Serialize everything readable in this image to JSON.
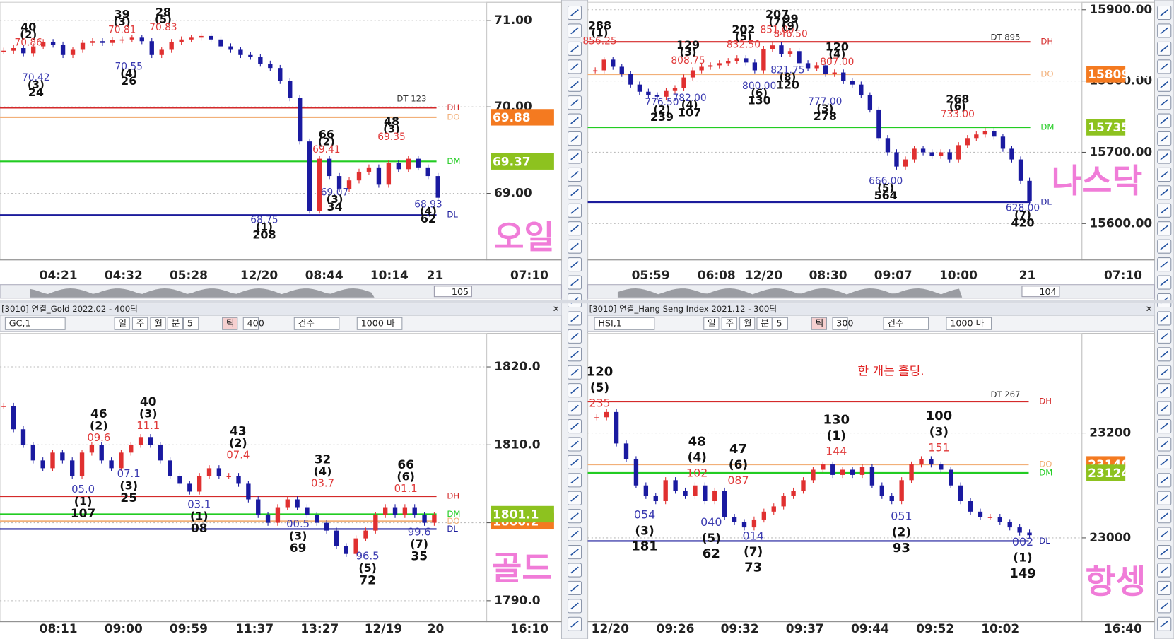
{
  "panels": [
    {
      "type": "candlestick",
      "big_label": "오일",
      "corner_label": "07:10",
      "scroll_value": 105,
      "dt_label": "DT 123",
      "ylim": [
        68.23,
        71.21
      ],
      "yticks": [
        {
          "value": 71,
          "label": "71.00"
        },
        {
          "value": 70,
          "label": "70.00"
        },
        {
          "value": 69,
          "label": "69.00"
        }
      ],
      "x_labels": [
        "04:21",
        "04:32",
        "05:28",
        "12/20",
        "08:44",
        "10:14",
        "21"
      ],
      "up_color": "#e03030",
      "down_color": "#1a1aa0",
      "levels": [
        {
          "name": "DH",
          "value": 69.99,
          "color": "#d42a2a"
        },
        {
          "name": "DO",
          "value": 69.88,
          "color": "#f2b079"
        },
        {
          "name": "DM",
          "value": 69.37,
          "color": "#22cc22"
        },
        {
          "name": "DL",
          "value": 68.75,
          "color": "#1c1c9c"
        }
      ],
      "price_tags": [
        {
          "value": 69.88,
          "color": "#f47a20"
        },
        {
          "value": 69.37,
          "color": "#8dc21f"
        }
      ],
      "highs": [
        {
          "count": "40",
          "wave": "(2)",
          "price": "70.86"
        },
        {
          "count": "39",
          "wave": "(3)",
          "price": "70.81"
        },
        {
          "count": "28",
          "wave": "(5)",
          "price": "70.83"
        },
        {
          "count": "66",
          "wave": "(2)",
          "price": "69.41"
        },
        {
          "count": "48",
          "wave": "(3)",
          "price": "69.35"
        }
      ],
      "lows": [
        {
          "price": "70.42",
          "wave": "(3)",
          "count": "24"
        },
        {
          "price": "70.55",
          "wave": "(4)",
          "count": "26"
        },
        {
          "price": "68.75",
          "wave": "(1)",
          "count": "208"
        },
        {
          "price": "69.07",
          "wave": "(3)",
          "count": "34"
        },
        {
          "price": "68.93",
          "wave": "(4)",
          "count": "62"
        }
      ],
      "closes": [
        70.65,
        70.68,
        70.62,
        70.7,
        70.75,
        70.72,
        70.6,
        70.66,
        70.74,
        70.76,
        70.74,
        70.77,
        70.78,
        70.8,
        70.76,
        70.6,
        70.66,
        70.75,
        70.78,
        70.8,
        70.82,
        70.78,
        70.7,
        70.66,
        70.6,
        70.58,
        70.5,
        70.45,
        70.3,
        70.1,
        69.6,
        68.8,
        69.4,
        69.2,
        69.05,
        69.15,
        69.25,
        69.3,
        69.1,
        69.35,
        69.28,
        69.4,
        69.3,
        69.2,
        68.95
      ]
    },
    {
      "type": "candlestick",
      "big_label": "나스닥",
      "corner_label": "07:10",
      "scroll_value": 104,
      "dt_label": "DT 895",
      "ylim": [
        15549,
        15910.5
      ],
      "yticks": [
        {
          "value": 15900,
          "label": "15900.00"
        },
        {
          "value": 15800,
          "label": "15800.00"
        },
        {
          "value": 15700,
          "label": "15700.00"
        },
        {
          "value": 15600,
          "label": "15600.00"
        }
      ],
      "x_labels": [
        "05:59",
        "06:08",
        "12/20",
        "08:30",
        "09:07",
        "10:00",
        "21"
      ],
      "up_color": "#e03030",
      "down_color": "#1a1aa0",
      "levels": [
        {
          "name": "DH",
          "value": 15855,
          "color": "#d42a2a"
        },
        {
          "name": "DO",
          "value": 15809.5,
          "color": "#f2b079"
        },
        {
          "name": "DM",
          "value": 15735.13,
          "color": "#22cc22"
        },
        {
          "name": "DL",
          "value": 15630,
          "color": "#1c1c9c"
        }
      ],
      "price_tags": [
        {
          "value": 15809.5,
          "label": "15809.50",
          "color": "#f47a20"
        },
        {
          "value": 15735.13,
          "color": "#8dc21f"
        }
      ],
      "highs": [
        {
          "count": "288",
          "wave": "(1)",
          "price": "856.25"
        },
        {
          "count": "129",
          "wave": "(3)",
          "price": "808.75"
        },
        {
          "count": "202",
          "wave": "(5)",
          "price": "832.50"
        },
        {
          "count": "207",
          "wave": "(7)",
          "price": "851.00"
        },
        {
          "count": "99",
          "wave": "(9)",
          "price": "846.50"
        },
        {
          "count": "120",
          "wave": "(4)",
          "price": "807.00"
        },
        {
          "count": "268",
          "wave": "(6)",
          "price": "733.00"
        }
      ],
      "lows": [
        {
          "price": "776.50",
          "wave": "(2)",
          "count": "239"
        },
        {
          "price": "782.00",
          "wave": "(4)",
          "count": "107"
        },
        {
          "price": "800.00",
          "wave": "(6)",
          "count": "130"
        },
        {
          "price": "821.75",
          "wave": "(8)",
          "count": "120"
        },
        {
          "price": "777.00",
          "wave": "(3)",
          "count": "278"
        },
        {
          "price": "666.00",
          "wave": "(5)",
          "count": "564"
        },
        {
          "price": "628.00",
          "wave": "(7)",
          "count": "420"
        }
      ],
      "closes": [
        15815,
        15830,
        15820,
        15810,
        15795,
        15785,
        15780,
        15778,
        15786,
        15790,
        15805,
        15815,
        15820,
        15822,
        15825,
        15828,
        15832,
        15826,
        15815,
        15845,
        15850,
        15838,
        15842,
        15825,
        15818,
        15822,
        15810,
        15812,
        15800,
        15795,
        15780,
        15760,
        15720,
        15700,
        15680,
        15690,
        15705,
        15700,
        15695,
        15700,
        15690,
        15710,
        15720,
        15725,
        15730,
        15722,
        15705,
        15690,
        15660,
        15632
      ]
    },
    {
      "type": "candlestick",
      "big_label": "골드",
      "corner_label": "16:10",
      "title": "[3010] 연결_Gold 2022.02 - 400틱",
      "toolbar": [
        "GC,1",
        "일",
        "주",
        "월",
        "분",
        "5",
        "틱",
        "400",
        "건수",
        "1000 바"
      ],
      "ylim": [
        1787.3,
        1824.3
      ],
      "yticks": [
        {
          "value": 1820,
          "label": "1820.0"
        },
        {
          "value": 1810,
          "label": "1810.0"
        },
        {
          "value": 1800,
          "label": "1800.0"
        },
        {
          "value": 1790,
          "label": "1790.0"
        }
      ],
      "x_labels": [
        "08:11",
        "09:00",
        "09:59",
        "11:37",
        "13:27",
        "12/19",
        "20"
      ],
      "up_color": "#e03030",
      "down_color": "#1a1aa0",
      "levels": [
        {
          "name": "DH",
          "value": 1803.4,
          "color": "#d42a2a"
        },
        {
          "name": "DM",
          "value": 1801.1,
          "color": "#22cc22"
        },
        {
          "name": "DO",
          "value": 1800.2,
          "color": "#f2b079"
        },
        {
          "name": "DL",
          "value": 1799.2,
          "color": "#1c1c9c"
        }
      ],
      "price_tags": [
        {
          "value": 1800.2,
          "color": "#f47a20"
        },
        {
          "value": 1801.1,
          "color": "#8dc21f"
        }
      ],
      "highs": [
        {
          "count": "46",
          "wave": "(2)",
          "price": "09.6"
        },
        {
          "count": "40",
          "wave": "(3)",
          "price": "11.1"
        },
        {
          "count": "43",
          "wave": "(2)",
          "price": "07.4"
        },
        {
          "count": "32",
          "wave": "(4)",
          "price": "03.7"
        },
        {
          "count": "66",
          "wave": "(6)",
          "price": "01.1"
        }
      ],
      "lows": [
        {
          "price": "05.0",
          "wave": "(1)",
          "count": "107"
        },
        {
          "price": "07.1",
          "wave": "(3)",
          "count": "25"
        },
        {
          "price": "03.1",
          "wave": "(1)",
          "count": "08"
        },
        {
          "price": "00.5",
          "wave": "(3)",
          "count": "69"
        },
        {
          "price": "96.5",
          "wave": "(5)",
          "count": "72"
        },
        {
          "price": "99.6",
          "wave": "(7)",
          "count": "35"
        }
      ],
      "closes": [
        1815,
        1812,
        1810,
        1808,
        1807,
        1809,
        1808,
        1806,
        1809,
        1810,
        1808,
        1807,
        1809,
        1810,
        1811,
        1810,
        1808,
        1806,
        1805,
        1804,
        1806,
        1807,
        1806,
        1806,
        1805,
        1803,
        1801,
        1800,
        1802,
        1803,
        1802,
        1801,
        1800,
        1799,
        1797,
        1796,
        1798,
        1799,
        1801,
        1802,
        1801,
        1802,
        1801,
        1800,
        1801
      ]
    },
    {
      "type": "candlestick",
      "big_label": "항셍",
      "corner_label": "16:40",
      "title": "[3010] 연결_Hang Seng Index 2021.12 - 300틱",
      "toolbar": [
        "HSI,1",
        "일",
        "주",
        "월",
        "분",
        "5",
        "틱",
        "300",
        "건수",
        "1000 바"
      ],
      "dt_label": "DT 267",
      "note": "한 개는 홀딩.",
      "ylim": [
        22840,
        23390
      ],
      "yticks": [
        23200,
        23000
      ],
      "x_labels": [
        "12/20",
        "09:26",
        "09:32",
        "09:37",
        "09:44",
        "09:52",
        "10:02"
      ],
      "up_color": "#e03030",
      "down_color": "#1a1aa0",
      "levels": [
        {
          "name": "DH",
          "value": 23260,
          "color": "#d42a2a"
        },
        {
          "name": "DO",
          "value": 23140,
          "color": "#f2b079"
        },
        {
          "name": "DM",
          "value": 23124,
          "color": "#22cc22"
        },
        {
          "name": "DL",
          "value": 22994,
          "color": "#1c1c9c"
        }
      ],
      "price_tags": [
        {
          "value": 23140,
          "color": "#f47a20"
        },
        {
          "value": 23124,
          "color": "#8dc21f"
        }
      ],
      "highs": [
        {
          "count": "120",
          "wave": "(5)",
          "price": "235"
        },
        {
          "count": "48",
          "wave": "(4)",
          "price": "102"
        },
        {
          "count": "47",
          "wave": "(6)",
          "price": "087"
        },
        {
          "count": "130",
          "wave": "(1)",
          "price": "144"
        },
        {
          "count": "100",
          "wave": "(3)",
          "price": "151"
        }
      ],
      "lows": [
        {
          "price": "054",
          "wave": "(3)",
          "count": "181"
        },
        {
          "price": "040",
          "wave": "(5)",
          "count": "62"
        },
        {
          "price": "014",
          "wave": "(7)",
          "count": "73"
        },
        {
          "price": "051",
          "wave": "(2)",
          "count": "93"
        },
        {
          "price": "002",
          "wave": "(1)",
          "count": "149"
        }
      ],
      "closes": [
        23230,
        23240,
        23180,
        23150,
        23100,
        23080,
        23070,
        23110,
        23090,
        23080,
        23100,
        23070,
        23090,
        23040,
        23030,
        23020,
        23035,
        23050,
        23060,
        23080,
        23090,
        23110,
        23130,
        23140,
        23120,
        23130,
        23120,
        23135,
        23100,
        23080,
        23070,
        23110,
        23140,
        23150,
        23140,
        23130,
        23100,
        23070,
        23050,
        23040,
        23040,
        23030,
        23020,
        23010,
        23005
      ]
    }
  ]
}
